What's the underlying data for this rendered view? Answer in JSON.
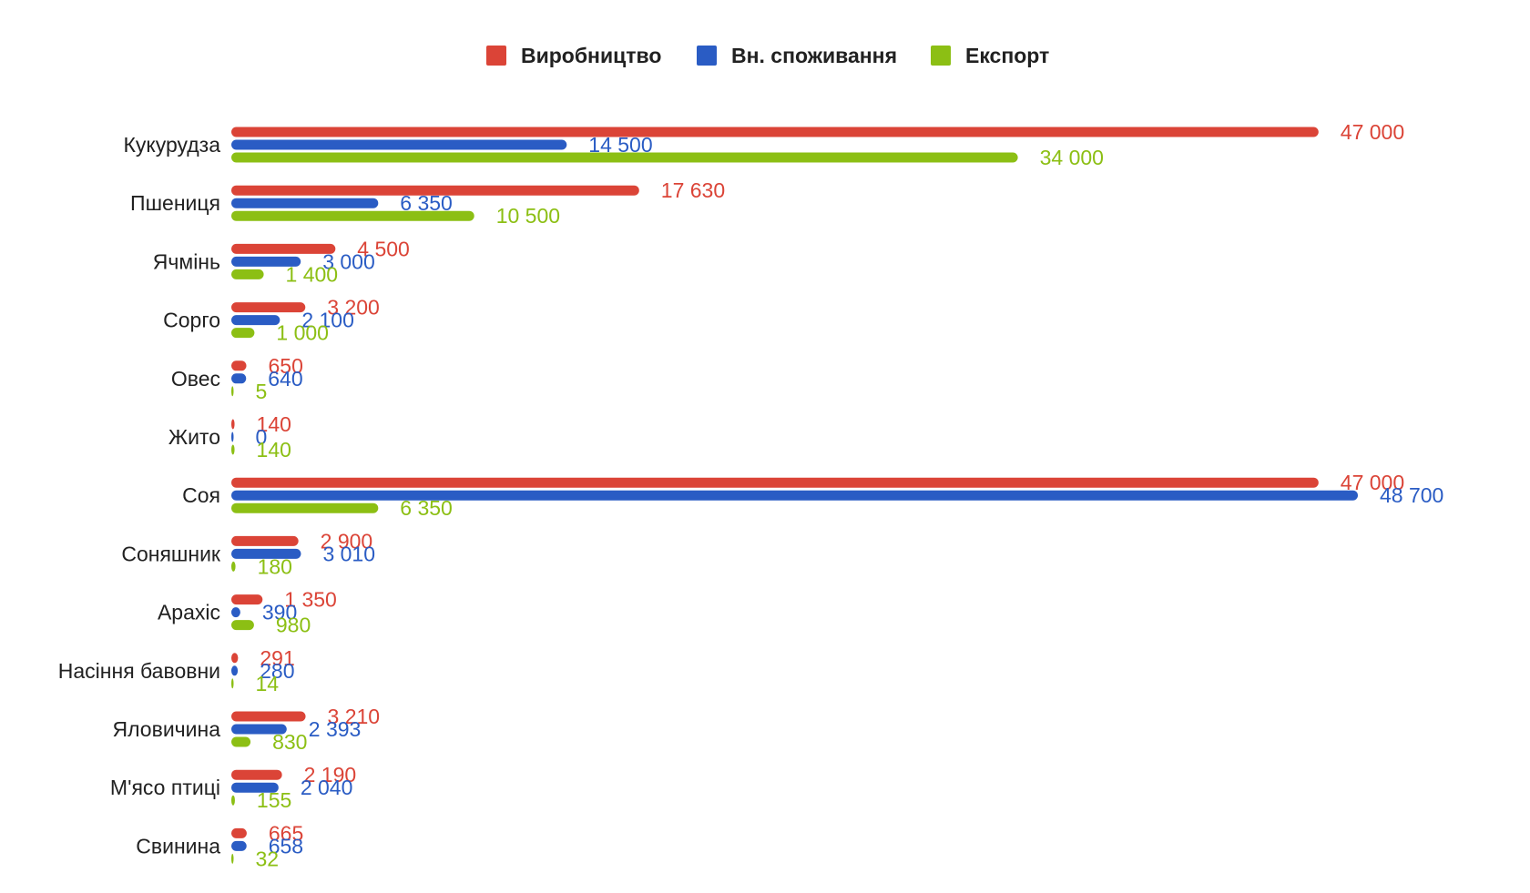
{
  "chart_data": {
    "type": "bar",
    "orientation": "horizontal",
    "title": "",
    "xlabel": "",
    "ylabel": "",
    "xlim": [
      0,
      50000
    ],
    "grid": false,
    "legend_position": "top",
    "categories": [
      "Кукурудза",
      "Пшениця",
      "Ячмінь",
      "Сорго",
      "Овес",
      "Жито",
      "Соя",
      "Соняшник",
      "Арахіс",
      "Насіння бавовни",
      "Яловичина",
      "М'ясо птиці",
      "Свинина"
    ],
    "series": [
      {
        "name": "Виробництво",
        "color": "#db4437",
        "values": [
          47000,
          17630,
          4500,
          3200,
          650,
          140,
          47000,
          2900,
          1350,
          291,
          3210,
          2190,
          665
        ],
        "labels": [
          "47 000",
          "17 630",
          "4 500",
          "3 200",
          "650",
          "140",
          "47 000",
          "2 900",
          "1 350",
          "291",
          "3 210",
          "2 190",
          "665"
        ]
      },
      {
        "name": "Вн. споживання",
        "color": "#2a5cc4",
        "values": [
          14500,
          6350,
          3000,
          2100,
          640,
          0,
          48700,
          3010,
          390,
          280,
          2393,
          2040,
          658
        ],
        "labels": [
          "14 500",
          "6 350",
          "3 000",
          "2 100",
          "640",
          "0",
          "48 700",
          "3 010",
          "390",
          "280",
          "2 393",
          "2 040",
          "658"
        ]
      },
      {
        "name": "Експорт",
        "color": "#8cbf14",
        "values": [
          34000,
          10500,
          1400,
          1000,
          5,
          140,
          6350,
          180,
          980,
          14,
          830,
          155,
          32
        ],
        "labels": [
          "34 000",
          "10 500",
          "1 400",
          "1 000",
          "5",
          "140",
          "6 350",
          "180",
          "980",
          "14",
          "830",
          "155",
          "32"
        ]
      }
    ]
  }
}
